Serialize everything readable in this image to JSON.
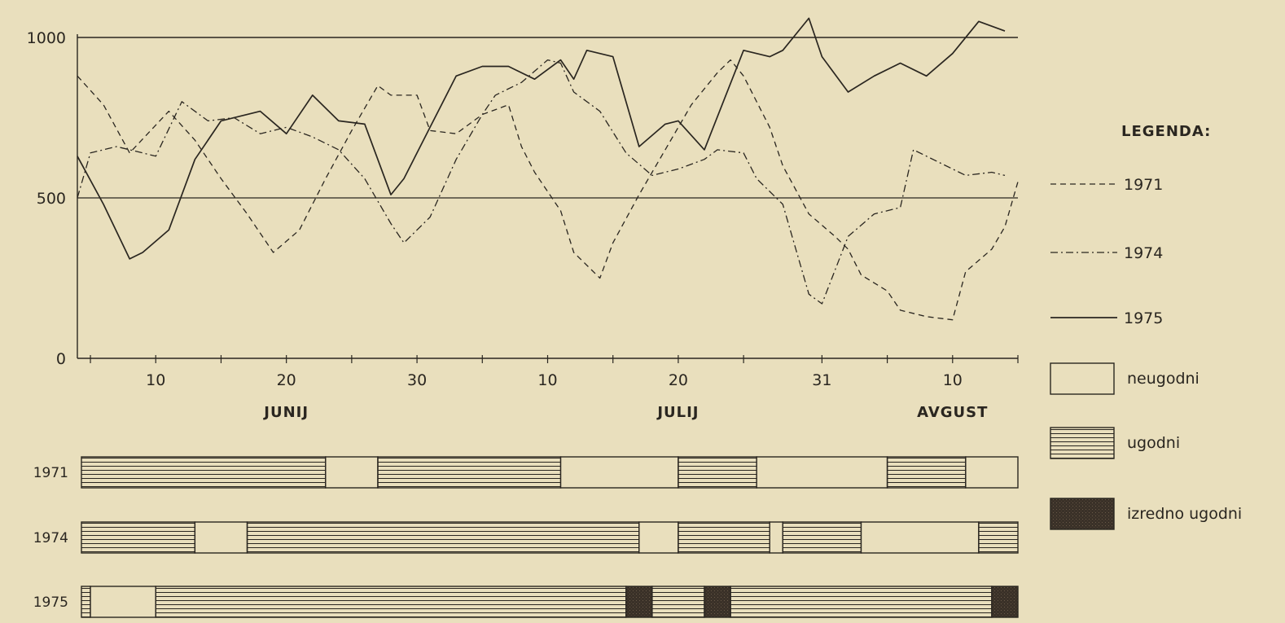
{
  "chart_data": {
    "type": "line",
    "y_ticks": [
      0,
      500,
      1000
    ],
    "ylim": [
      0,
      1000
    ],
    "x_range": [
      "06-04",
      "08-15"
    ],
    "grid": "horizontal lines at 500 and 1000",
    "x_ticks": [
      {
        "label": "10",
        "date": "06-10"
      },
      {
        "label": "20",
        "date": "06-20"
      },
      {
        "label": "30",
        "date": "06-30"
      },
      {
        "label": "10",
        "date": "07-10"
      },
      {
        "label": "20",
        "date": "07-20"
      },
      {
        "label": "31",
        "date": "07-31"
      },
      {
        "label": "10",
        "date": "08-10"
      }
    ],
    "minor_ticks": [
      "06-05",
      "06-15",
      "06-25",
      "07-05",
      "07-15",
      "07-25",
      "08-05",
      "08-15"
    ],
    "months": [
      {
        "label": "JUNIJ",
        "date": "06-20"
      },
      {
        "label": "JULIJ",
        "date": "07-20"
      },
      {
        "label": "AVGUST",
        "date": "08-10"
      }
    ],
    "series": [
      {
        "name": "1971",
        "style": "dashed",
        "points": [
          [
            "06-04",
            880
          ],
          [
            "06-06",
            790
          ],
          [
            "06-08",
            640
          ],
          [
            "06-11",
            770
          ],
          [
            "06-13",
            680
          ],
          [
            "06-15",
            560
          ],
          [
            "06-17",
            450
          ],
          [
            "06-19",
            330
          ],
          [
            "06-21",
            400
          ],
          [
            "06-23",
            560
          ],
          [
            "06-25",
            710
          ],
          [
            "06-27",
            850
          ],
          [
            "06-28",
            820
          ],
          [
            "06-30",
            820
          ],
          [
            "07-01",
            710
          ],
          [
            "07-03",
            700
          ],
          [
            "07-05",
            760
          ],
          [
            "07-07",
            790
          ],
          [
            "07-08",
            660
          ],
          [
            "07-09",
            580
          ],
          [
            "07-11",
            460
          ],
          [
            "07-12",
            330
          ],
          [
            "07-14",
            250
          ],
          [
            "07-15",
            360
          ],
          [
            "07-17",
            510
          ],
          [
            "07-19",
            650
          ],
          [
            "07-21",
            790
          ],
          [
            "07-23",
            890
          ],
          [
            "07-24",
            930
          ],
          [
            "07-25",
            880
          ],
          [
            "07-27",
            720
          ],
          [
            "07-28",
            600
          ],
          [
            "07-30",
            450
          ],
          [
            "08-01",
            380
          ],
          [
            "08-02",
            340
          ],
          [
            "08-03",
            260
          ],
          [
            "08-05",
            210
          ],
          [
            "08-06",
            150
          ],
          [
            "08-08",
            130
          ],
          [
            "08-10",
            120
          ],
          [
            "08-11",
            270
          ],
          [
            "08-13",
            340
          ],
          [
            "08-14",
            410
          ],
          [
            "08-15",
            550
          ]
        ]
      },
      {
        "name": "1974",
        "style": "dash-dot",
        "points": [
          [
            "06-04",
            500
          ],
          [
            "06-05",
            640
          ],
          [
            "06-07",
            660
          ],
          [
            "06-09",
            640
          ],
          [
            "06-10",
            630
          ],
          [
            "06-12",
            800
          ],
          [
            "06-14",
            740
          ],
          [
            "06-16",
            750
          ],
          [
            "06-18",
            700
          ],
          [
            "06-20",
            720
          ],
          [
            "06-22",
            690
          ],
          [
            "06-24",
            650
          ],
          [
            "06-26",
            560
          ],
          [
            "06-28",
            420
          ],
          [
            "06-29",
            360
          ],
          [
            "07-01",
            440
          ],
          [
            "07-03",
            620
          ],
          [
            "07-05",
            760
          ],
          [
            "07-06",
            820
          ],
          [
            "07-08",
            860
          ],
          [
            "07-10",
            930
          ],
          [
            "07-11",
            920
          ],
          [
            "07-12",
            830
          ],
          [
            "07-14",
            770
          ],
          [
            "07-16",
            640
          ],
          [
            "07-18",
            570
          ],
          [
            "07-20",
            590
          ],
          [
            "07-22",
            620
          ],
          [
            "07-23",
            650
          ],
          [
            "07-25",
            640
          ],
          [
            "07-26",
            560
          ],
          [
            "07-28",
            480
          ],
          [
            "07-30",
            200
          ],
          [
            "07-31",
            170
          ],
          [
            "08-02",
            380
          ],
          [
            "08-04",
            450
          ],
          [
            "08-06",
            470
          ],
          [
            "08-07",
            650
          ],
          [
            "08-09",
            610
          ],
          [
            "08-11",
            570
          ],
          [
            "08-13",
            580
          ],
          [
            "08-14",
            570
          ]
        ]
      },
      {
        "name": "1975",
        "style": "solid",
        "points": [
          [
            "06-04",
            630
          ],
          [
            "06-06",
            480
          ],
          [
            "06-08",
            310
          ],
          [
            "06-09",
            330
          ],
          [
            "06-11",
            400
          ],
          [
            "06-13",
            620
          ],
          [
            "06-15",
            740
          ],
          [
            "06-18",
            770
          ],
          [
            "06-20",
            700
          ],
          [
            "06-22",
            820
          ],
          [
            "06-24",
            740
          ],
          [
            "06-26",
            730
          ],
          [
            "06-28",
            510
          ],
          [
            "06-29",
            560
          ],
          [
            "07-01",
            720
          ],
          [
            "07-03",
            880
          ],
          [
            "07-05",
            910
          ],
          [
            "07-07",
            910
          ],
          [
            "07-09",
            870
          ],
          [
            "07-11",
            930
          ],
          [
            "07-12",
            870
          ],
          [
            "07-13",
            960
          ],
          [
            "07-15",
            940
          ],
          [
            "07-17",
            660
          ],
          [
            "07-19",
            730
          ],
          [
            "07-20",
            740
          ],
          [
            "07-22",
            650
          ],
          [
            "07-25",
            960
          ],
          [
            "07-27",
            940
          ],
          [
            "07-28",
            960
          ],
          [
            "07-30",
            1060
          ],
          [
            "07-31",
            940
          ],
          [
            "08-02",
            830
          ],
          [
            "08-04",
            880
          ],
          [
            "08-06",
            920
          ],
          [
            "08-08",
            880
          ],
          [
            "08-10",
            950
          ],
          [
            "08-12",
            1050
          ],
          [
            "08-14",
            1020
          ]
        ]
      }
    ],
    "band_rows": [
      {
        "year": "1971",
        "segments": [
          {
            "kind": "ugodni",
            "start": "06-04",
            "end": "06-23"
          },
          {
            "kind": "neugodni",
            "start": "06-23",
            "end": "06-27"
          },
          {
            "kind": "ugodni",
            "start": "06-27",
            "end": "07-11"
          },
          {
            "kind": "neugodni",
            "start": "07-11",
            "end": "07-20"
          },
          {
            "kind": "ugodni",
            "start": "07-20",
            "end": "07-26"
          },
          {
            "kind": "neugodni",
            "start": "07-26",
            "end": "08-05"
          },
          {
            "kind": "ugodni",
            "start": "08-05",
            "end": "08-11"
          },
          {
            "kind": "neugodni",
            "start": "08-11",
            "end": "08-18"
          },
          {
            "kind": "ugodni",
            "start": "08-18",
            "end": "08-22"
          }
        ]
      },
      {
        "year": "1974",
        "segments": [
          {
            "kind": "ugodni",
            "start": "06-04",
            "end": "06-13"
          },
          {
            "kind": "neugodni",
            "start": "06-13",
            "end": "06-17"
          },
          {
            "kind": "ugodni",
            "start": "06-17",
            "end": "07-17"
          },
          {
            "kind": "neugodni",
            "start": "07-17",
            "end": "07-20"
          },
          {
            "kind": "ugodni",
            "start": "07-20",
            "end": "07-27"
          },
          {
            "kind": "neugodni",
            "start": "07-27",
            "end": "07-28"
          },
          {
            "kind": "ugodni",
            "start": "07-28",
            "end": "08-03"
          },
          {
            "kind": "neugodni",
            "start": "08-03",
            "end": "08-12"
          },
          {
            "kind": "ugodni",
            "start": "08-12",
            "end": "08-22"
          }
        ]
      },
      {
        "year": "1975",
        "segments": [
          {
            "kind": "ugodni",
            "start": "06-04",
            "end": "06-05"
          },
          {
            "kind": "neugodni",
            "start": "06-05",
            "end": "06-10"
          },
          {
            "kind": "ugodni",
            "start": "06-10",
            "end": "07-16"
          },
          {
            "kind": "izredno",
            "start": "07-16",
            "end": "07-18"
          },
          {
            "kind": "ugodni",
            "start": "07-18",
            "end": "07-22"
          },
          {
            "kind": "izredno",
            "start": "07-22",
            "end": "07-24"
          },
          {
            "kind": "ugodni",
            "start": "07-24",
            "end": "08-13"
          },
          {
            "kind": "izredno",
            "start": "08-13",
            "end": "08-15"
          },
          {
            "kind": "ugodni",
            "start": "08-15",
            "end": "08-22"
          }
        ]
      }
    ],
    "legend": {
      "title": "LEGENDA:",
      "placement": "right",
      "lines": [
        {
          "label": "1971",
          "style": "dashed"
        },
        {
          "label": "1974",
          "style": "dash-dot"
        },
        {
          "label": "1975",
          "style": "solid"
        }
      ],
      "boxes": [
        {
          "label": "neugodni",
          "kind": "neugodni"
        },
        {
          "label": "ugodni",
          "kind": "ugodni"
        },
        {
          "label": "izredno ugodni",
          "kind": "izredno"
        }
      ]
    },
    "colors": {
      "paper": "#e9dfbd",
      "ink": "#2a2620",
      "dark_fill": "#3a3128"
    }
  }
}
